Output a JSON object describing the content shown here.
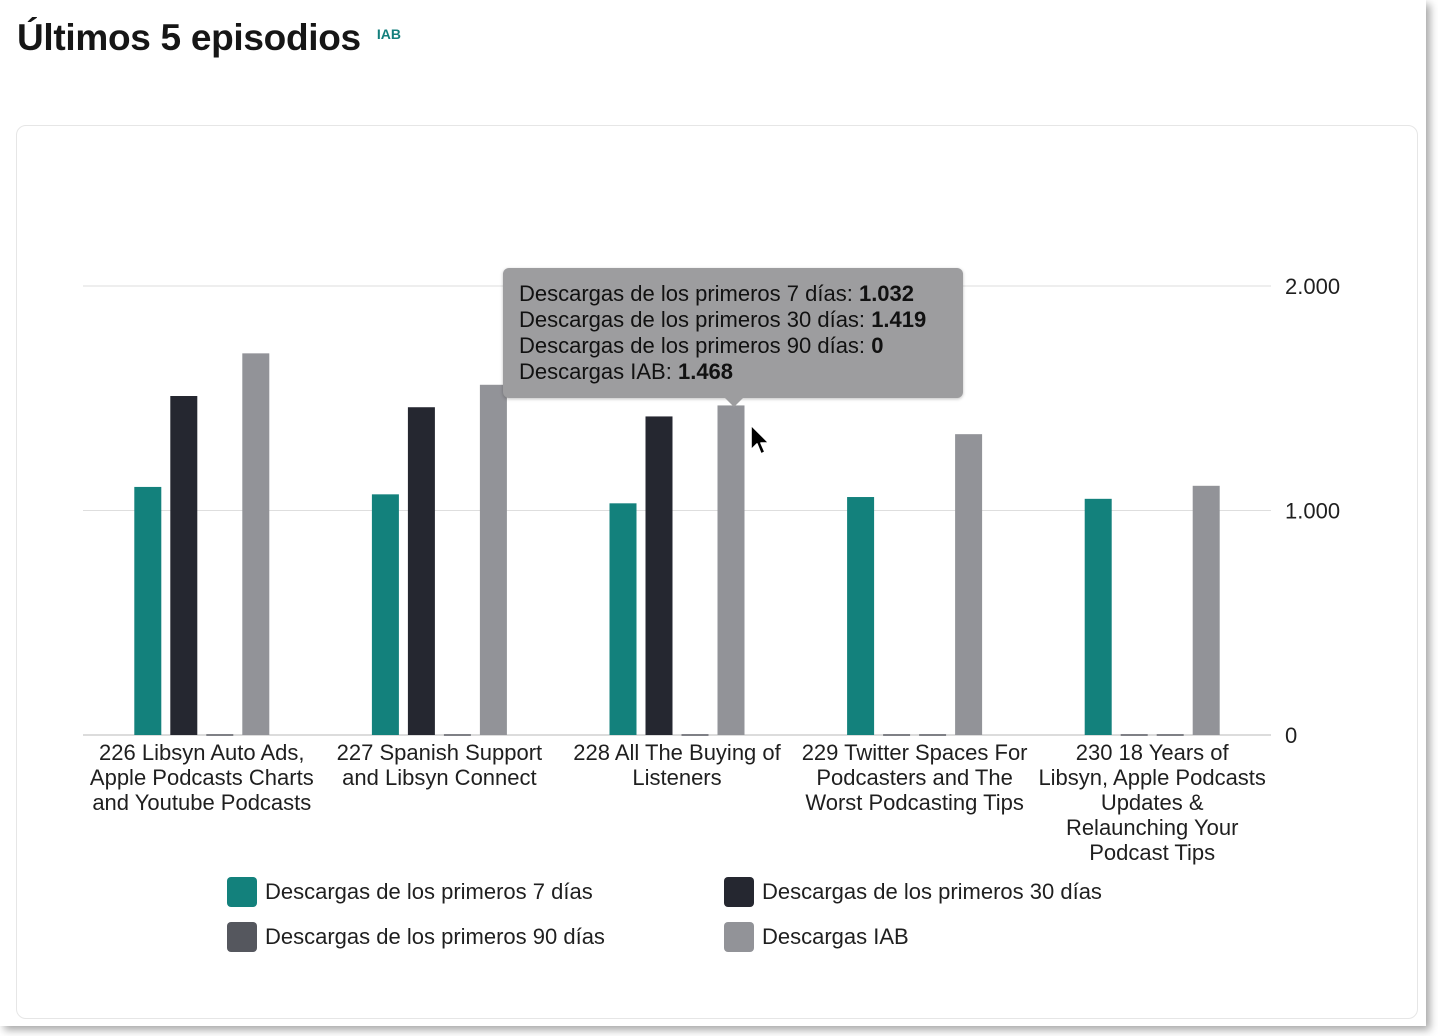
{
  "header": {
    "title": "Últimos 5 episodios",
    "badge": "IAB"
  },
  "colors": {
    "s7": "#13817c",
    "s30": "#252730",
    "s90": "#55575e",
    "iab": "#929398",
    "accent": "#137f7c"
  },
  "chart_data": {
    "type": "bar",
    "title": "",
    "xlabel": "",
    "ylabel": "",
    "ylim": [
      0,
      2000
    ],
    "yticks": [
      0,
      1000,
      2000
    ],
    "ytick_labels": [
      "0",
      "1.000",
      "2.000"
    ],
    "y_axis_position": "right",
    "grid": true,
    "legend_position": "bottom",
    "categories": [
      "226 Libsyn Auto Ads, Apple Podcasts Charts and Youtube Podcasts",
      "227 Spanish Support and Libsyn Connect",
      "228 All The Buying of Listeners",
      "229 Twitter Spaces For Podcasters and The Worst Podcasting Tips",
      "230 18 Years of Libsyn, Apple Podcasts Updates & Relaunching Your Podcast Tips"
    ],
    "series": [
      {
        "name": "Descargas de los primeros 7 días",
        "color": "#13817c",
        "values": [
          1105,
          1072,
          1032,
          1060,
          1052
        ]
      },
      {
        "name": "Descargas de los primeros 30 días",
        "color": "#252730",
        "values": [
          1510,
          1460,
          1419,
          0,
          0
        ]
      },
      {
        "name": "Descargas de los primeros 90 días",
        "color": "#55575e",
        "values": [
          0,
          0,
          0,
          0,
          0
        ]
      },
      {
        "name": "Descargas IAB",
        "color": "#929398",
        "values": [
          1700,
          1560,
          1468,
          1340,
          1110
        ]
      }
    ]
  },
  "tooltip": {
    "lines": [
      {
        "label": "Descargas de los primeros 7 días:",
        "value": "1.032"
      },
      {
        "label": "Descargas de los primeros 30 días:",
        "value": "1.419"
      },
      {
        "label": "Descargas de los primeros 90 días:",
        "value": "0"
      },
      {
        "label": "Descargas IAB:",
        "value": "1.468"
      }
    ]
  }
}
